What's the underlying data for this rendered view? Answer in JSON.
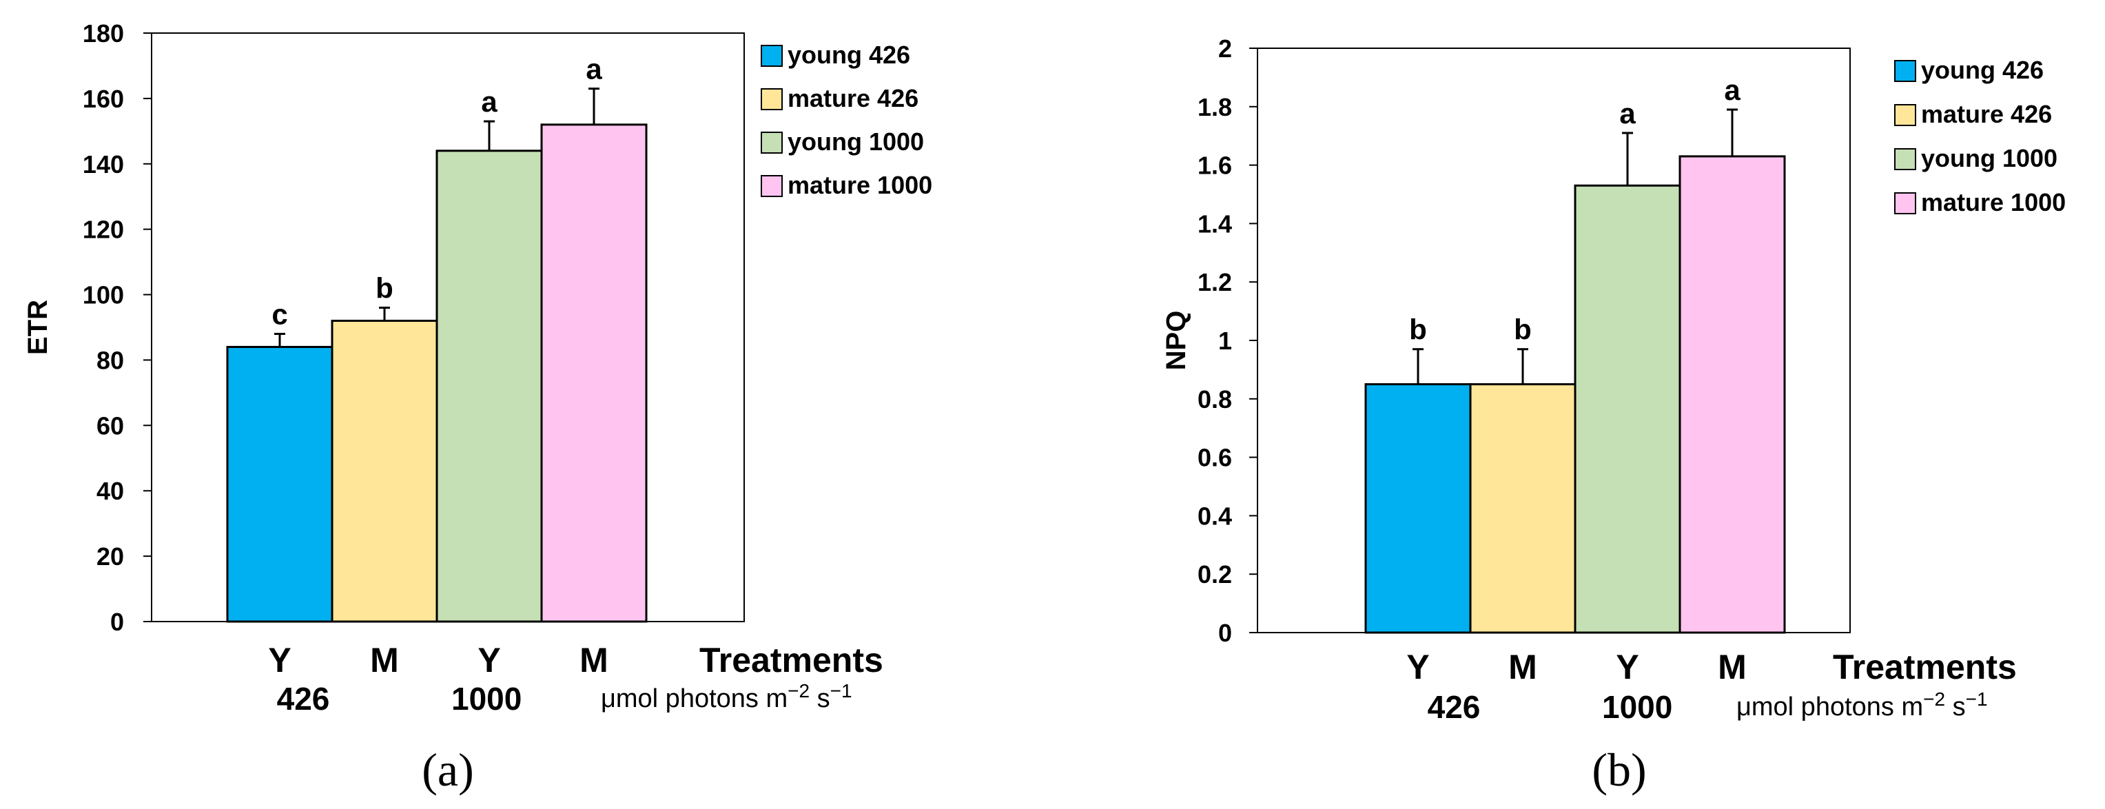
{
  "chart_data": [
    {
      "type": "bar",
      "panel": "(a)",
      "ylabel": "ETR",
      "xlabel": "Treatments",
      "ylim": [
        0,
        180
      ],
      "yticks": [
        "0",
        "20",
        "40",
        "60",
        "80",
        "100",
        "120",
        "140",
        "160",
        "180"
      ],
      "categories": [
        "Y",
        "M",
        "Y",
        "M"
      ],
      "groups": [
        "426",
        "1000"
      ],
      "unit": "μmol photons m−2 s−1",
      "series": [
        {
          "name": "young 426",
          "value": 84,
          "error": 4,
          "sig": "c",
          "color": "#00b0f0"
        },
        {
          "name": "mature 426",
          "value": 92,
          "error": 4,
          "sig": "b",
          "color": "#ffe699"
        },
        {
          "name": "young 1000",
          "value": 144,
          "error": 9,
          "sig": "a",
          "color": "#c5e0b4"
        },
        {
          "name": "mature 1000",
          "value": 152,
          "error": 11,
          "sig": "a",
          "color": "#ffc5f0"
        }
      ],
      "legend": "right"
    },
    {
      "type": "bar",
      "panel": "(b)",
      "ylabel": "NPQ",
      "xlabel": "Treatments",
      "ylim": [
        0,
        2
      ],
      "yticks": [
        "0",
        "0.2",
        "0.4",
        "0.6",
        "0.8",
        "1",
        "1.2",
        "1.4",
        "1.6",
        "1.8",
        "2"
      ],
      "categories": [
        "Y",
        "M",
        "Y",
        "M"
      ],
      "groups": [
        "426",
        "1000"
      ],
      "unit": "μmol photons m−2 s−1",
      "series": [
        {
          "name": "young 426",
          "value": 0.85,
          "error": 0.12,
          "sig": "b",
          "color": "#00b0f0"
        },
        {
          "name": "mature 426",
          "value": 0.85,
          "error": 0.12,
          "sig": "b",
          "color": "#ffe699"
        },
        {
          "name": "young 1000",
          "value": 1.53,
          "error": 0.18,
          "sig": "a",
          "color": "#c5e0b4"
        },
        {
          "name": "mature 1000",
          "value": 1.63,
          "error": 0.16,
          "sig": "a",
          "color": "#ffc5f0"
        }
      ],
      "legend": "right"
    }
  ]
}
